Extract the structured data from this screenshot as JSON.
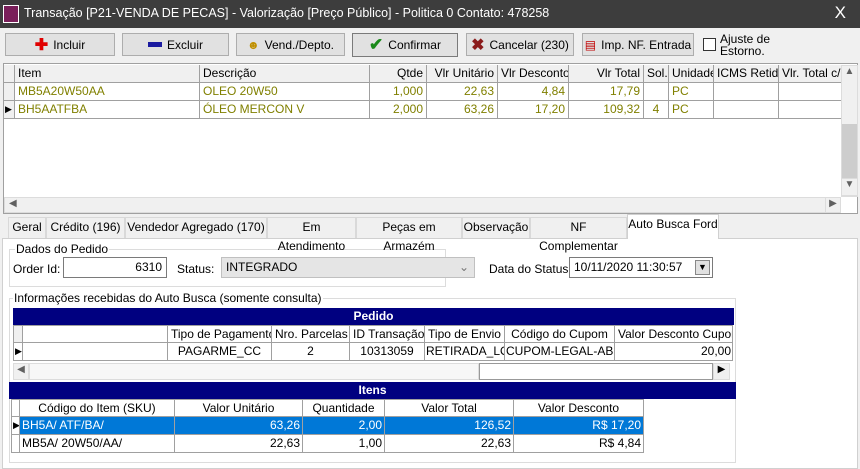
{
  "window": {
    "title": "Transação [P21-VENDA DE PECAS] - Valorização [Preço Público] - Politica 0  Contato: 478258",
    "close": "X"
  },
  "toolbar": {
    "incluir": "Incluir",
    "excluir": "Excluir",
    "vend": "Vend./Depto.",
    "confirmar": "Confirmar",
    "cancelar": "Cancelar (230)",
    "imp": "Imp. NF. Entrada",
    "ajuste_line1": "Ajuste  de",
    "ajuste_line2": "Estorno.",
    "ajuste_checked": false
  },
  "items_grid": {
    "columns": [
      "Item",
      "Descrição",
      "Qtde",
      "Vlr Unitário",
      "Vlr Desconto",
      "Vlr Total",
      "Sol.",
      "Unidade",
      "ICMS Retido",
      "Vlr. Total c/I"
    ],
    "rows": [
      [
        "MB5A20W50AA",
        "OLEO 20W50",
        "1,000",
        "22,63",
        "4,84",
        "17,79",
        "",
        "PC",
        "",
        ""
      ],
      [
        "BH5AATFBA",
        "ÓLEO MERCON V",
        "2,000",
        "63,26",
        "17,20",
        "109,32",
        "4",
        "PC",
        "",
        ""
      ]
    ]
  },
  "tabs": [
    "Geral",
    "Crédito (196)",
    "Vendedor Agregado (170)",
    "Em Atendimento",
    "Peças em Armazém",
    "Observação",
    "NF Complementar",
    "Auto Busca Ford"
  ],
  "active_tab": "Auto Busca Ford",
  "dados": {
    "legend": "Dados do Pedido",
    "order_label": "Order Id:",
    "order_value": "6310",
    "status_label": "Status:",
    "status_value": "INTEGRADO",
    "data_label": "Data do Status:",
    "data_value": "10/11/2020 11:30:57"
  },
  "info": {
    "legend": "Informações recebidas do Auto Busca (somente consulta)",
    "pedido_title": "Pedido",
    "pedido_columns": [
      "",
      "Tipo de Pagamento",
      "Nro. Parcelas",
      "ID Transação",
      "Tipo de Envio",
      "Código do Cupom",
      "Valor Desconto Cupom"
    ],
    "pedido_row": [
      "",
      "PAGARME_CC",
      "2",
      "10313059",
      "RETIRADA_LOC",
      "CUPOM-LEGAL-AB",
      "20,00"
    ],
    "itens_title": "Itens",
    "itens_columns": [
      "Código do Item (SKU)",
      "Valor Unitário",
      "Quantidade",
      "Valor Total",
      "Valor Desconto"
    ],
    "itens_rows": [
      [
        "BH5A/    ATF/BA/",
        "63,26",
        "2,00",
        "126,52",
        "R$ 17,20"
      ],
      [
        "MB5A/   20W50/AA/",
        "22,63",
        "1,00",
        "22,63",
        "R$ 4,84"
      ]
    ]
  },
  "colors": {
    "band": "#000080",
    "selection": "#0078d7",
    "olive_text": "#808000"
  }
}
